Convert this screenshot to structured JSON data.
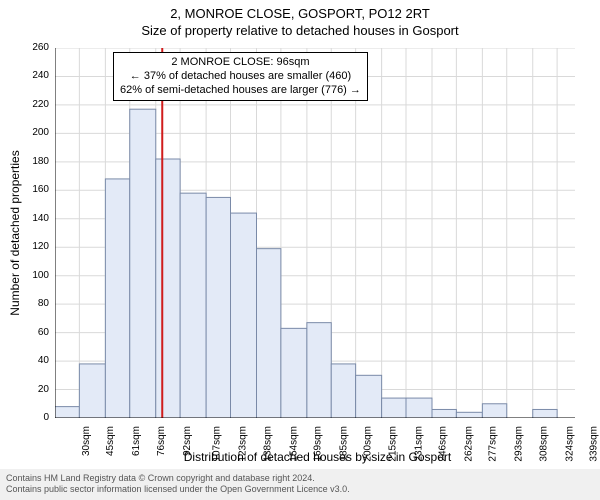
{
  "title_main": "2, MONROE CLOSE, GOSPORT, PO12 2RT",
  "title_sub": "Size of property relative to detached houses in Gosport",
  "ylabel": "Number of detached properties",
  "xlabel": "Distribution of detached houses by size in Gosport",
  "annotation": {
    "line1": "2 MONROE CLOSE: 96sqm",
    "line2": "← 37% of detached houses are smaller (460)",
    "line3": "62% of semi-detached houses are larger (776) →"
  },
  "footer_line1": "Contains HM Land Registry data © Crown copyright and database right 2024.",
  "footer_line2": "Contains public sector information licensed under the Open Government Licence v3.0.",
  "chart": {
    "type": "histogram",
    "background_color": "#ffffff",
    "axis_color": "#000000",
    "grid_color": "#d9d9d9",
    "bar_fill": "#e3eaf7",
    "bar_stroke": "#7a8aa8",
    "marker_line_color": "#d01c1c",
    "marker_line_width": 2,
    "marker_x_value": 96,
    "label_fontsize": 12,
    "tick_fontsize": 10,
    "xlim": [
      30,
      350
    ],
    "ylim": [
      0,
      260
    ],
    "ytick_step": 20,
    "xtick_step": 15.3,
    "bins": [
      {
        "start": 30,
        "end": 45,
        "count": 8,
        "label": "30sqm"
      },
      {
        "start": 45,
        "end": 61,
        "count": 38,
        "label": "45sqm"
      },
      {
        "start": 61,
        "end": 76,
        "count": 168,
        "label": "61sqm"
      },
      {
        "start": 76,
        "end": 92,
        "count": 217,
        "label": "76sqm"
      },
      {
        "start": 92,
        "end": 107,
        "count": 182,
        "label": "92sqm"
      },
      {
        "start": 107,
        "end": 123,
        "count": 158,
        "label": "107sqm"
      },
      {
        "start": 123,
        "end": 138,
        "count": 155,
        "label": "123sqm"
      },
      {
        "start": 138,
        "end": 154,
        "count": 144,
        "label": "138sqm"
      },
      {
        "start": 154,
        "end": 169,
        "count": 119,
        "label": "154sqm"
      },
      {
        "start": 169,
        "end": 185,
        "count": 63,
        "label": "169sqm"
      },
      {
        "start": 185,
        "end": 200,
        "count": 67,
        "label": "185sqm"
      },
      {
        "start": 200,
        "end": 215,
        "count": 38,
        "label": "200sqm"
      },
      {
        "start": 215,
        "end": 231,
        "count": 30,
        "label": "215sqm"
      },
      {
        "start": 231,
        "end": 246,
        "count": 14,
        "label": "231sqm"
      },
      {
        "start": 246,
        "end": 262,
        "count": 14,
        "label": "246sqm"
      },
      {
        "start": 262,
        "end": 277,
        "count": 6,
        "label": "262sqm"
      },
      {
        "start": 277,
        "end": 293,
        "count": 4,
        "label": "277sqm"
      },
      {
        "start": 293,
        "end": 308,
        "count": 10,
        "label": "293sqm"
      },
      {
        "start": 308,
        "end": 324,
        "count": 0,
        "label": "308sqm"
      },
      {
        "start": 324,
        "end": 339,
        "count": 6,
        "label": "324sqm"
      },
      {
        "start": 339,
        "end": 350,
        "count": 0,
        "label": "339sqm"
      }
    ]
  }
}
